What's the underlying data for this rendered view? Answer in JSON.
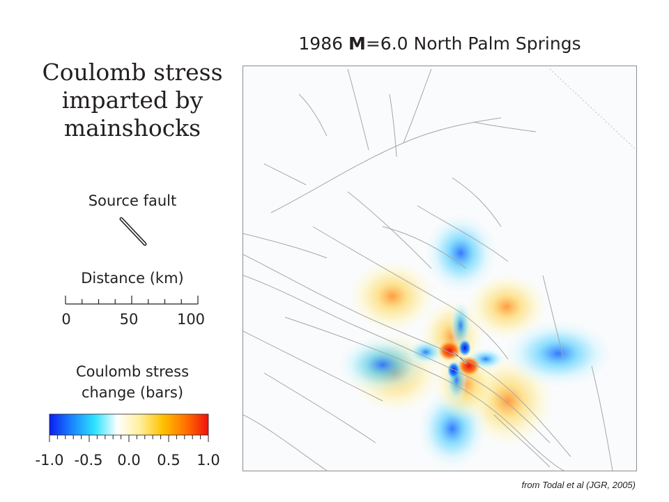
{
  "title": {
    "prefix": "1986 ",
    "magnitude_symbol": "M",
    "suffix": "=6.0 North Palm Springs"
  },
  "side_title": {
    "line1": "Coulomb stress",
    "line2": "imparted by",
    "line3": "mainshocks"
  },
  "legend": {
    "source_fault_label": "Source fault",
    "distance_label": "Distance (km)",
    "distance_ticks": [
      "0",
      "50",
      "100"
    ],
    "colorbar_label_line1": "Coulomb stress",
    "colorbar_label_line2": "change (bars)",
    "colorbar_ticks": [
      "-1.0",
      "-0.5",
      "0.0",
      "0.5",
      "1.0"
    ],
    "colorbar_range": [
      -1.0,
      1.0
    ],
    "colorbar_colors": [
      "#0b1ff0",
      "#1a86ff",
      "#2ee3ff",
      "#ffffff",
      "#ffef9a",
      "#ffc000",
      "#ff7200",
      "#f01010"
    ]
  },
  "map": {
    "stress_lobes": {
      "positive_color": "#ff8a20",
      "negative_color": "#1e6cff",
      "peak_positive_color": "#e01010",
      "peak_negative_color": "#1010e0"
    },
    "fault_line_color": "#a6a6a6"
  },
  "credit": "from Todal et al (JGR, 2005)"
}
